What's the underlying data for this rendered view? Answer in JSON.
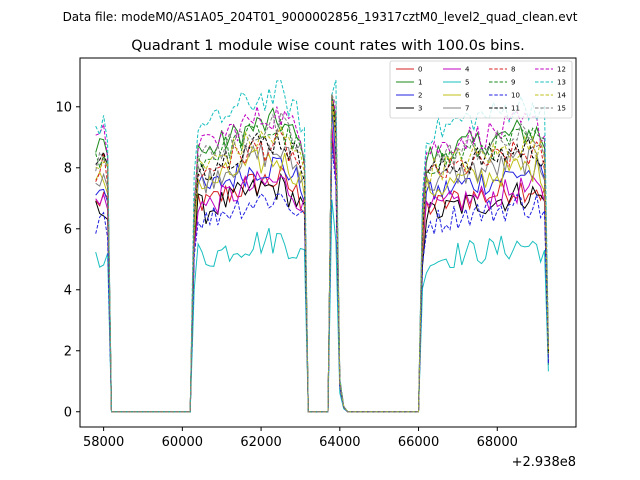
{
  "suptitle": "Data file: modeM0/AS1A05_204T01_9000002856_19317cztM0_level2_quad_clean.evt",
  "chart_data": {
    "type": "line",
    "title": "Quadrant 1 module wise count rates with 100.0s bins.",
    "xlabel": "",
    "ylabel": "",
    "offset_label": "+2.938e8",
    "xlim": [
      57400,
      70000
    ],
    "ylim": [
      -0.5,
      11.6
    ],
    "xticks": [
      58000,
      60000,
      62000,
      64000,
      66000,
      68000
    ],
    "xtick_labels": [
      "58000",
      "60000",
      "62000",
      "64000",
      "66000",
      "68000"
    ],
    "yticks": [
      0,
      2,
      4,
      6,
      8,
      10
    ],
    "ytick_labels": [
      "0",
      "2",
      "4",
      "6",
      "8",
      "10"
    ],
    "segments": [
      [
        57800,
        58200
      ],
      [
        60200,
        63200
      ],
      [
        63800,
        64200
      ],
      [
        66000,
        69300
      ]
    ],
    "base_profile": [
      [
        57800,
        7.3
      ],
      [
        58000,
        7.6
      ],
      [
        58100,
        7.1
      ],
      [
        58200,
        0.0
      ],
      [
        60200,
        0.0
      ],
      [
        60300,
        5.9
      ],
      [
        60400,
        7.5
      ],
      [
        60600,
        7.3
      ],
      [
        61000,
        7.6
      ],
      [
        61500,
        7.9
      ],
      [
        62000,
        8.1
      ],
      [
        62500,
        8.2
      ],
      [
        62900,
        7.7
      ],
      [
        63100,
        7.3
      ],
      [
        63200,
        0.0
      ],
      [
        63700,
        0.0
      ],
      [
        63800,
        9.6
      ],
      [
        63900,
        8.5
      ],
      [
        64000,
        0.9
      ],
      [
        64100,
        0.15
      ],
      [
        64200,
        0.0
      ],
      [
        66000,
        0.0
      ],
      [
        66100,
        5.6
      ],
      [
        66200,
        7.2
      ],
      [
        66600,
        7.3
      ],
      [
        67000,
        7.5
      ],
      [
        67500,
        7.6
      ],
      [
        68000,
        7.7
      ],
      [
        68500,
        7.9
      ],
      [
        69000,
        7.9
      ],
      [
        69200,
        7.6
      ],
      [
        69300,
        1.8
      ]
    ],
    "series": [
      {
        "name": "0",
        "color": "#d62020",
        "dash": "solid",
        "scale": 0.93
      },
      {
        "name": "1",
        "color": "#1a8a1a",
        "dash": "solid",
        "scale": 1.16
      },
      {
        "name": "2",
        "color": "#2020e0",
        "dash": "solid",
        "scale": 0.99
      },
      {
        "name": "3",
        "color": "#000000",
        "dash": "solid",
        "scale": 0.9
      },
      {
        "name": "4",
        "color": "#c000c0",
        "dash": "solid",
        "scale": 0.92
      },
      {
        "name": "5",
        "color": "#19bfbf",
        "dash": "solid",
        "scale": 0.69
      },
      {
        "name": "6",
        "color": "#bfbf19",
        "dash": "solid",
        "scale": 1.01
      },
      {
        "name": "7",
        "color": "#808080",
        "dash": "solid",
        "scale": 1.04
      },
      {
        "name": "8",
        "color": "#d62020",
        "dash": "dashed",
        "scale": 1.07
      },
      {
        "name": "9",
        "color": "#1a8a1a",
        "dash": "dashed",
        "scale": 1.13
      },
      {
        "name": "10",
        "color": "#2020e0",
        "dash": "dashed",
        "scale": 0.86
      },
      {
        "name": "11",
        "color": "#000000",
        "dash": "dashed",
        "scale": 1.09
      },
      {
        "name": "12",
        "color": "#c000c0",
        "dash": "dashed",
        "scale": 1.19
      },
      {
        "name": "13",
        "color": "#19bfbf",
        "dash": "dashed",
        "scale": 1.27
      },
      {
        "name": "14",
        "color": "#bfbf19",
        "dash": "dashed",
        "scale": 1.1
      },
      {
        "name": "15",
        "color": "#808080",
        "dash": "dashed",
        "scale": 1.14
      }
    ],
    "legend_location": "top-right",
    "legend_columns": 4,
    "grid": false
  }
}
